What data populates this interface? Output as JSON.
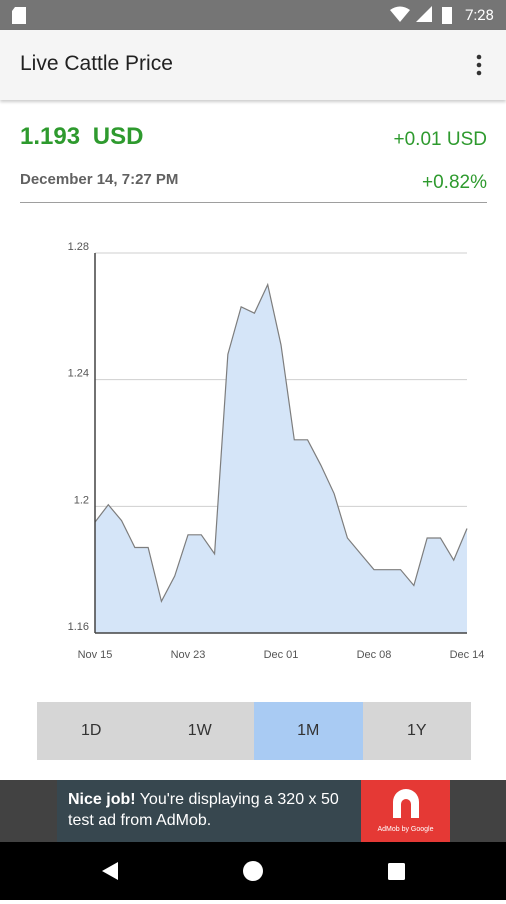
{
  "status_bar": {
    "time": "7:28"
  },
  "app_bar": {
    "title": "Live Cattle Price"
  },
  "quote": {
    "price": "1.193",
    "currency": "USD",
    "change": "+0.01 USD",
    "date": "December 14, 7:27 PM",
    "change_percent": "+0.82%"
  },
  "chart_data": {
    "type": "area",
    "categories": [
      "Nov 15",
      null,
      null,
      null,
      null,
      null,
      null,
      "Nov 23",
      null,
      null,
      null,
      null,
      null,
      null,
      "Dec 01",
      null,
      null,
      null,
      null,
      null,
      null,
      "Dec 08",
      null,
      null,
      null,
      null,
      null,
      null,
      "Dec 14"
    ],
    "values": [
      1.195,
      1.2005,
      1.1955,
      1.187,
      1.187,
      1.17,
      1.178,
      1.191,
      1.191,
      1.185,
      1.248,
      1.263,
      1.261,
      1.27,
      1.251,
      1.221,
      1.221,
      1.213,
      1.204,
      1.19,
      1.185,
      1.18,
      1.18,
      1.18,
      1.175,
      1.19,
      1.19,
      1.183,
      1.193
    ],
    "color": "#d5e5f8",
    "line_color": "#7d7d7d",
    "ylim": [
      1.16,
      1.28
    ],
    "yticks": [
      1.16,
      1.2,
      1.24,
      1.28
    ],
    "grid": true
  },
  "range_buttons": {
    "options": [
      "1D",
      "1W",
      "1M",
      "1Y"
    ],
    "selected": 2
  },
  "ad": {
    "headline": "Nice job!",
    "text": "You're displaying a 320 x 50 test ad from AdMob.",
    "brand": "AdMob by Google"
  }
}
